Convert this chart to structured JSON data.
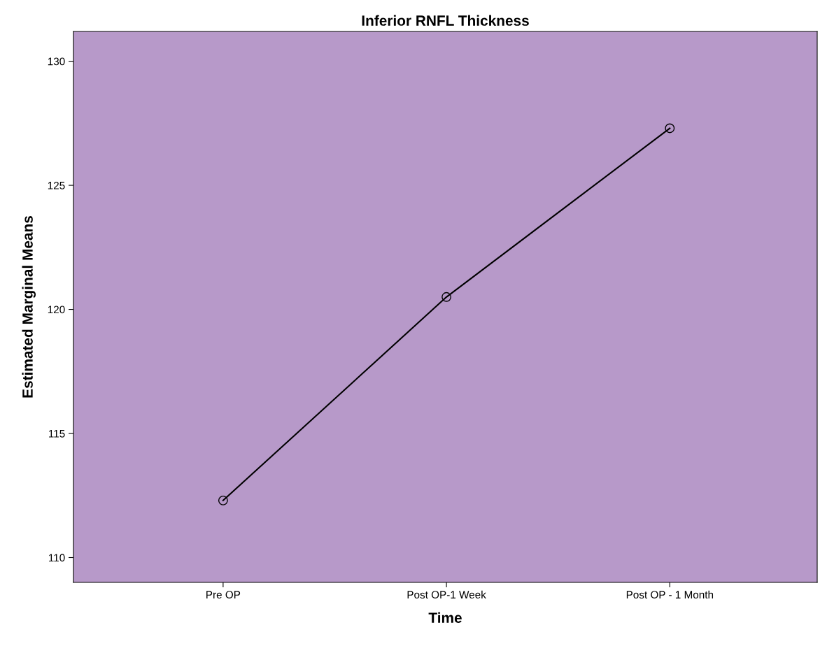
{
  "chart_data": {
    "type": "line",
    "title": "Inferior RNFL Thickness",
    "xlabel": "Time",
    "ylabel": "Estimated Marginal Means",
    "categories": [
      "Pre OP",
      "Post OP-1 Week",
      "Post OP - 1 Month"
    ],
    "series": [
      {
        "color": "#000000",
        "values": [
          112.3,
          120.5,
          127.3
        ]
      }
    ],
    "ylim": [
      109,
      131.2
    ],
    "yticks": [
      110,
      115,
      120,
      125,
      130
    ],
    "marker": "circle",
    "line_style": "solid",
    "grid": false,
    "legend": false
  }
}
